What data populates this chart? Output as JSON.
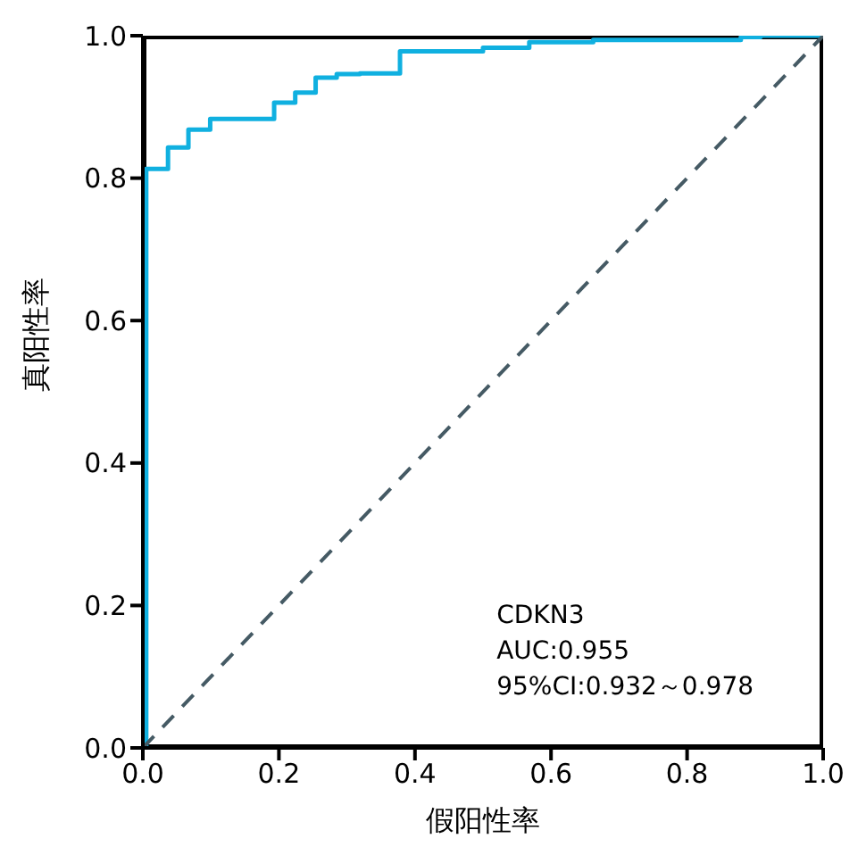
{
  "chart_data": {
    "type": "line",
    "xlabel": "假阳性率",
    "ylabel": "真阳性率",
    "xlim": [
      0,
      1
    ],
    "ylim": [
      0,
      1
    ],
    "xticks": [
      {
        "value": 0,
        "label": "0.0"
      },
      {
        "value": 0.2,
        "label": "0.2"
      },
      {
        "value": 0.4,
        "label": "0.4"
      },
      {
        "value": 0.6,
        "label": "0.6"
      },
      {
        "value": 0.8,
        "label": "0.8"
      },
      {
        "value": 1,
        "label": "1.0"
      }
    ],
    "yticks": [
      {
        "value": 0,
        "label": "0.0"
      },
      {
        "value": 0.2,
        "label": "0.2"
      },
      {
        "value": 0.4,
        "label": "0.4"
      },
      {
        "value": 0.6,
        "label": "0.6"
      },
      {
        "value": 0.8,
        "label": "0.8"
      },
      {
        "value": 1,
        "label": "1.0"
      }
    ],
    "grid": false,
    "legend": false,
    "marker": "none",
    "series": [
      {
        "type": "step",
        "color": "#10b0e0",
        "line_style": "solid",
        "x": [
          0,
          0.005,
          0.037,
          0.067,
          0.099,
          0.193,
          0.224,
          0.254,
          0.285,
          0.319,
          0.378,
          0.5,
          0.568,
          0.662,
          0.879,
          0.908,
          1.0
        ],
        "values": [
          0,
          0.813,
          0.843,
          0.868,
          0.883,
          0.906,
          0.92,
          0.941,
          0.946,
          0.947,
          0.978,
          0.983,
          0.991,
          0.994,
          0.998,
          1.0,
          1.0
        ]
      },
      {
        "type": "line",
        "color": "#455a64",
        "line_style": "dashed",
        "x": [
          0,
          1
        ],
        "values": [
          0,
          1
        ]
      }
    ],
    "annotations": [
      "CDKN3",
      "AUC:0.955",
      "95%CI:0.932～0.978"
    ]
  }
}
